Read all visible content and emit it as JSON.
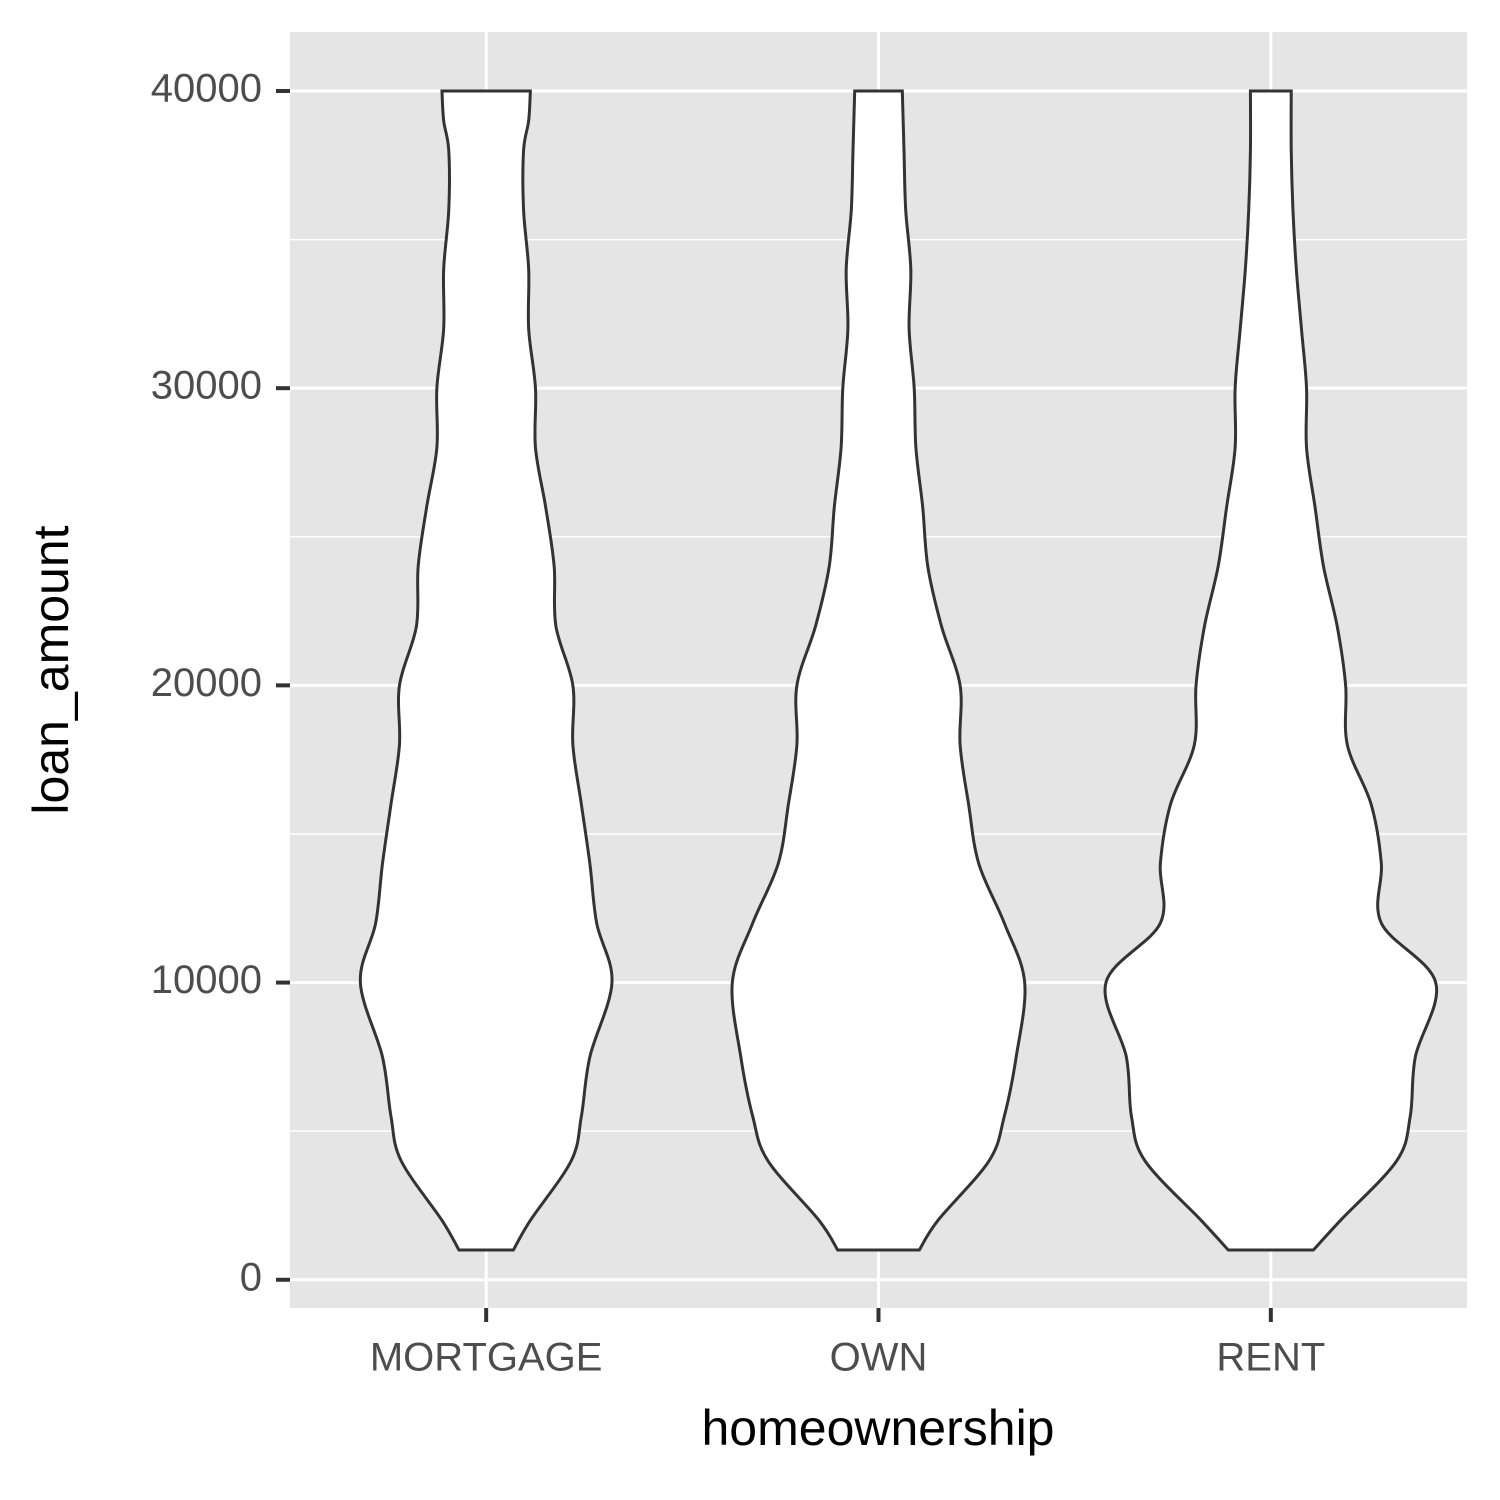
{
  "chart_data": {
    "type": "violin",
    "x_label": "homeownership",
    "y_label": "loan_amount",
    "categories": [
      "MORTGAGE",
      "OWN",
      "RENT"
    ],
    "ylim": [
      -950,
      41985
    ],
    "yticks": [
      0,
      10000,
      20000,
      30000,
      40000
    ],
    "grid": true,
    "fill": "#ffffff",
    "outline_color": "#333333",
    "panel_color": "#e5e5e5",
    "violins": [
      {
        "y": [
          1000,
          2000,
          4000,
          5500,
          7500,
          10000,
          12000,
          14000,
          16000,
          18000,
          20000,
          22000,
          24000,
          26000,
          28000,
          30000,
          32000,
          34000,
          36000,
          38000,
          39000,
          40000
        ],
        "density": [
          0.16,
          0.26,
          0.5,
          0.56,
          0.61,
          0.74,
          0.65,
          0.61,
          0.56,
          0.51,
          0.51,
          0.41,
          0.4,
          0.35,
          0.29,
          0.29,
          0.25,
          0.25,
          0.22,
          0.22,
          0.25,
          0.26
        ]
      },
      {
        "y": [
          1000,
          2000,
          4000,
          5500,
          7500,
          10000,
          12000,
          14000,
          16000,
          18000,
          20000,
          22000,
          24000,
          26000,
          28000,
          30000,
          32000,
          34000,
          36000,
          38000,
          40000
        ],
        "density": [
          0.24,
          0.35,
          0.65,
          0.74,
          0.81,
          0.86,
          0.74,
          0.59,
          0.53,
          0.48,
          0.48,
          0.37,
          0.29,
          0.26,
          0.22,
          0.21,
          0.18,
          0.19,
          0.16,
          0.15,
          0.14
        ]
      },
      {
        "y": [
          1000,
          2000,
          4000,
          5500,
          7500,
          10000,
          12000,
          14000,
          16000,
          18000,
          20000,
          22000,
          24000,
          26000,
          28000,
          30000,
          32000,
          34000,
          36000,
          38000,
          40000
        ],
        "density": [
          0.25,
          0.41,
          0.74,
          0.82,
          0.85,
          0.97,
          0.65,
          0.65,
          0.59,
          0.45,
          0.44,
          0.39,
          0.31,
          0.26,
          0.21,
          0.21,
          0.18,
          0.15,
          0.13,
          0.12,
          0.12
        ]
      }
    ]
  }
}
